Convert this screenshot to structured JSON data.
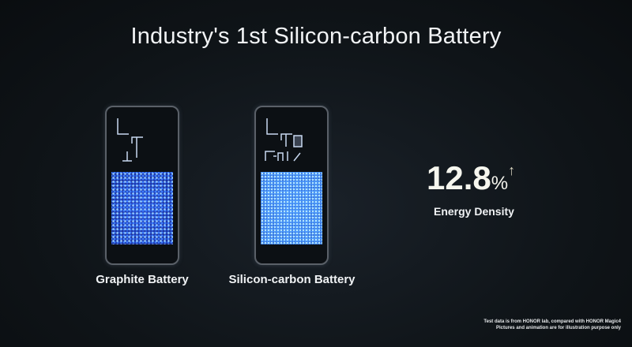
{
  "slide": {
    "title": "Industry's 1st Silicon-carbon Battery",
    "batteries": [
      {
        "label": "Graphite Battery"
      },
      {
        "label": "Silicon-carbon Battery"
      }
    ],
    "metric": {
      "value": "12.8",
      "unit": "%",
      "trend_icon": "arrow-up-icon",
      "label": "Energy Density"
    },
    "footnote": [
      "Test data is from HONOR lab, compared with HONOR Magic4",
      "Pictures and animation are for illustration purpose only"
    ],
    "colors": {
      "background": "#0f1418",
      "battery_cells": "#2a4cc8"
    }
  }
}
